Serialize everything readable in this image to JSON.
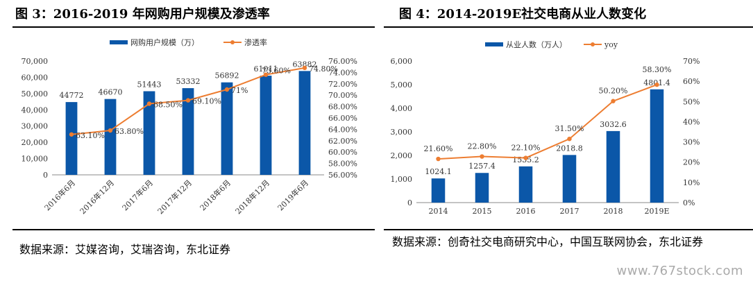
{
  "colors": {
    "bar": "#0b57a8",
    "line": "#ed7d31",
    "axis": "#888888",
    "text": "#333333"
  },
  "left_panel": {
    "title": "图 3：2016-2019 年网购用户规模及渗透率",
    "source": "数据来源：艾媒咨询，艾瑞咨询，东北证券"
  },
  "right_panel": {
    "title": "图 4：2014-2019E社交电商从业人数变化",
    "source": "数据来源：创奇社交电商研究中心，中国互联网协会，东北证券"
  },
  "watermark": "www.767stock.com",
  "chart_data": [
    {
      "type": "bar",
      "categories": [
        "2016年6月",
        "2016年12月",
        "2017年6月",
        "2017年12月",
        "2018年6月",
        "2018年12月",
        "2019年6月"
      ],
      "series": [
        {
          "name": "网购用户规模（万）",
          "kind": "bar",
          "axis": "left",
          "values": [
            44772,
            46670,
            51443,
            53332,
            56892,
            61011,
            63882
          ],
          "labels": [
            "44772",
            "46670",
            "51443",
            "53332",
            "56892",
            "61011",
            "63882"
          ]
        },
        {
          "name": "渗透率",
          "kind": "line",
          "axis": "right",
          "values": [
            63.1,
            63.8,
            68.5,
            69.1,
            71.0,
            73.6,
            74.8
          ],
          "labels": [
            "63.10%",
            "63.80%",
            "68.50%",
            "69.10%",
            "71%",
            "73.60%",
            "74.80%"
          ]
        }
      ],
      "ylim": [
        0,
        70000
      ],
      "yticks": [
        "0",
        "10,000",
        "20,000",
        "30,000",
        "40,000",
        "50,000",
        "60,000",
        "70,000"
      ],
      "y2lim": [
        56,
        76
      ],
      "y2ticks": [
        "56.00%",
        "58.00%",
        "60.00%",
        "62.00%",
        "64.00%",
        "66.00%",
        "68.00%",
        "70.00%",
        "72.00%",
        "74.00%",
        "76.00%"
      ],
      "legend_position": "top-center",
      "grid": false
    },
    {
      "type": "bar",
      "categories": [
        "2014",
        "2015",
        "2016",
        "2017",
        "2018",
        "2019E"
      ],
      "series": [
        {
          "name": "从业人数（万人）",
          "kind": "bar",
          "axis": "left",
          "values": [
            1024.1,
            1257.4,
            1535.2,
            2018.8,
            3032.6,
            4801.4
          ],
          "labels": [
            "1024.1",
            "1257.4",
            "1535.2",
            "2018.8",
            "3032.6",
            "4801.4"
          ]
        },
        {
          "name": "yoy",
          "kind": "line",
          "axis": "right",
          "values": [
            21.6,
            22.8,
            22.1,
            31.5,
            50.2,
            58.3
          ],
          "labels": [
            "21.60%",
            "22.80%",
            "22.10%",
            "31.50%",
            "50.20%",
            "58.30%"
          ]
        }
      ],
      "ylim": [
        0,
        6000
      ],
      "yticks": [
        "0",
        "1,000",
        "2,000",
        "3,000",
        "4,000",
        "5,000",
        "6,000"
      ],
      "y2lim": [
        0,
        70
      ],
      "y2ticks": [
        "0%",
        "10%",
        "20%",
        "30%",
        "40%",
        "50%",
        "60%",
        "70%"
      ],
      "legend_position": "top-center",
      "grid": false
    }
  ]
}
